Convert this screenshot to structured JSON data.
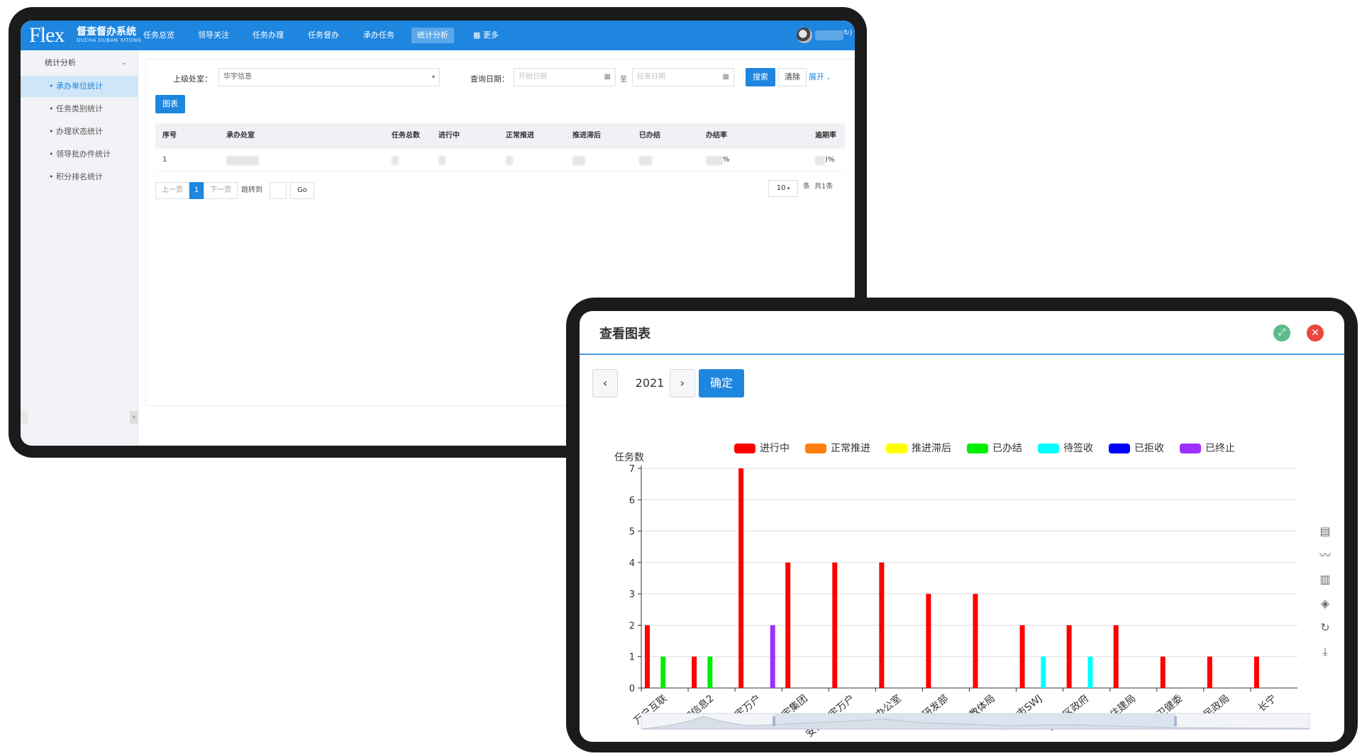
{
  "app": {
    "logo_text": "Flex",
    "logo_cn": "督查督办系统",
    "logo_en": "DUCHA DUBAN XITONG",
    "nav": [
      {
        "label": "任务总览"
      },
      {
        "label": "领导关注"
      },
      {
        "label": "任务办理"
      },
      {
        "label": "任务督办"
      },
      {
        "label": "承办任务"
      },
      {
        "label": "统计分析"
      },
      {
        "label": "更多"
      }
    ],
    "nav_active": "统计分析",
    "user_suffix": "↻)"
  },
  "sidebar": {
    "header": "统计分析",
    "items": [
      {
        "label": "承办单位统计"
      },
      {
        "label": "任务类别统计"
      },
      {
        "label": "办理状态统计"
      },
      {
        "label": "领导批办件统计"
      },
      {
        "label": "积分排名统计"
      }
    ],
    "collapse_glyph": "«"
  },
  "filters": {
    "dept_label": "上级处室：",
    "dept_value": "华宇信息",
    "date_label": "查询日期：",
    "start_placeholder": "开始日期",
    "to_label": "至",
    "end_placeholder": "结束日期",
    "search_btn": "搜索",
    "clear_btn": "清除",
    "expand_btn": "展开"
  },
  "chart_btn": "图表",
  "table": {
    "columns": [
      "序号",
      "承办处室",
      "任务总数",
      "进行中",
      "正常推进",
      "推进滞后",
      "已办结",
      "办结率",
      "逾期率"
    ],
    "rows": [
      {
        "index": "1",
        "rate_suffix": "%",
        "overdue_suffix": ")%"
      }
    ]
  },
  "pagination": {
    "prev": "上一页",
    "current": "1",
    "next": "下一页",
    "jump_label": "跳转到",
    "go": "Go",
    "page_size": "10",
    "unit": "条",
    "total": "共1条"
  },
  "dialog": {
    "title": "查看图表",
    "year": "2021",
    "prev_glyph": "‹",
    "next_glyph": "›",
    "confirm": "确定"
  },
  "chart_data": {
    "type": "bar",
    "ylabel": "任务数",
    "ylim": [
      0,
      7
    ],
    "yticks": [
      0,
      1,
      2,
      3,
      4,
      5,
      6,
      7
    ],
    "legend_position": "top-center",
    "categories": [
      "万户互联",
      "华宇信息2",
      "华宇万户",
      "华宇集团",
      "安徽华宇万户",
      "办公室",
      "研发部",
      "教体局",
      "北京市SWJ",
      "济阳区政府",
      "住建局",
      "卫健委",
      "民政局",
      "长宁"
    ],
    "series": [
      {
        "name": "进行中",
        "color": "#ff0000",
        "values": [
          2,
          1,
          7,
          4,
          4,
          4,
          3,
          3,
          2,
          2,
          2,
          1,
          1,
          1
        ]
      },
      {
        "name": "正常推进",
        "color": "#ff7f0e",
        "values": [
          0,
          0,
          0,
          0,
          0,
          0,
          0,
          0,
          0,
          0,
          0,
          0,
          0,
          0
        ]
      },
      {
        "name": "推进滞后",
        "color": "#ffff00",
        "values": [
          0,
          0,
          0,
          0,
          0,
          0,
          0,
          0,
          0,
          0,
          0,
          0,
          0,
          0
        ]
      },
      {
        "name": "已办结",
        "color": "#00ee00",
        "values": [
          1,
          1,
          0,
          0,
          0,
          0,
          0,
          0,
          0,
          0,
          0,
          0,
          0,
          0
        ]
      },
      {
        "name": "待签收",
        "color": "#00ffff",
        "values": [
          0,
          0,
          0,
          0,
          0,
          0,
          0,
          0,
          1,
          1,
          0,
          0,
          0,
          0
        ]
      },
      {
        "name": "已拒收",
        "color": "#0000ff",
        "values": [
          0,
          0,
          0,
          0,
          0,
          0,
          0,
          0,
          0,
          0,
          0,
          0,
          0,
          0
        ]
      },
      {
        "name": "已终止",
        "color": "#9b30ff",
        "values": [
          0,
          0,
          2,
          0,
          0,
          0,
          0,
          0,
          0,
          0,
          0,
          0,
          0,
          0
        ]
      }
    ],
    "toolbox": [
      "data-view-icon",
      "line-chart-icon",
      "bar-chart-icon",
      "stack-icon",
      "restore-icon",
      "save-image-icon"
    ]
  }
}
